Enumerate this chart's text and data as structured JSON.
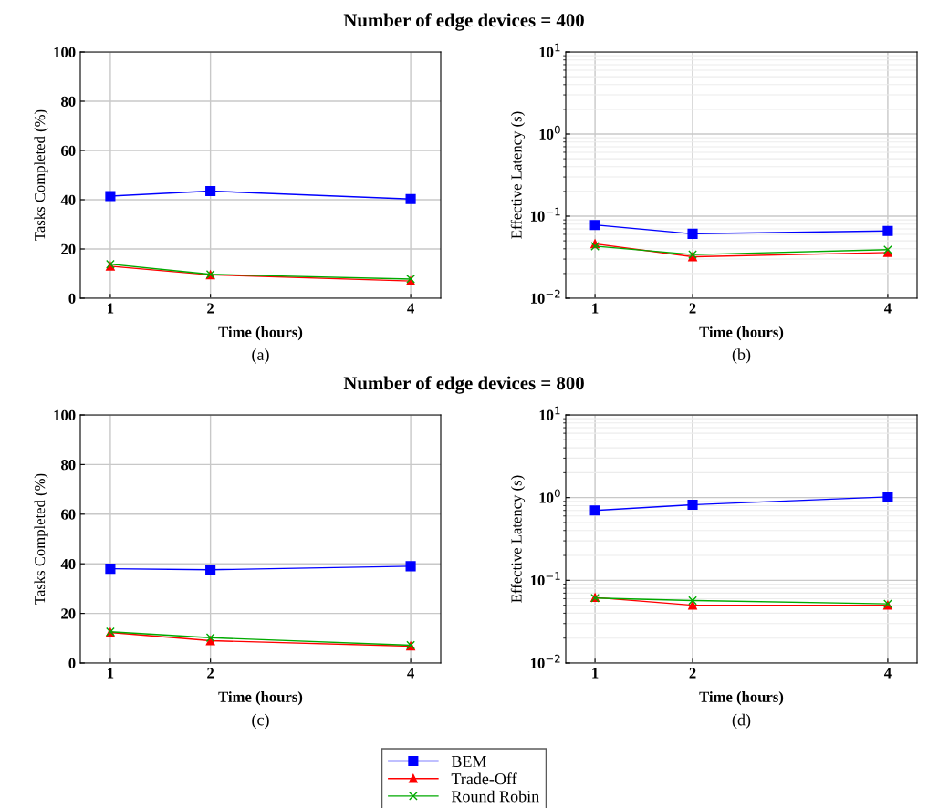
{
  "chart_data": [
    {
      "type": "line",
      "title": "Number of edge devices = 400",
      "xlabel": "Time (hours)",
      "ylabel": "Tasks Completed (%)",
      "annotations": [
        "(a)"
      ],
      "x": [
        1,
        2,
        4
      ],
      "xlim": [
        0.7,
        4.3
      ],
      "xticks": [
        1,
        2,
        4
      ],
      "ylim": [
        0,
        100
      ],
      "yticks": [
        0,
        20,
        40,
        60,
        80,
        100
      ],
      "grid": true,
      "legend": false,
      "series": [
        {
          "color": "#0000ff",
          "marker": "square",
          "values": [
            41.5,
            43.5,
            40.3
          ]
        },
        {
          "color": "#ff0000",
          "marker": "triangle",
          "values": [
            13,
            9.5,
            7
          ]
        },
        {
          "color": "#00aa00",
          "marker": "cross",
          "values": [
            13.8,
            9.7,
            7.8
          ]
        }
      ]
    },
    {
      "type": "line",
      "xlabel": "Time (hours)",
      "ylabel": "Effective Latency (s)",
      "annotations": [
        "(b)"
      ],
      "x": [
        1,
        2,
        4
      ],
      "xlim": [
        0.7,
        4.3
      ],
      "xticks": [
        1,
        2,
        4
      ],
      "log": "y",
      "ylim": [
        0.01,
        10
      ],
      "yticks": [
        {
          "value": 0.01,
          "label": "10$^{−2}$"
        },
        {
          "value": 0.1,
          "label": "10$^{−1}$"
        },
        {
          "value": 1,
          "label": "10$^{0}$"
        },
        {
          "value": 10,
          "label": "10$^{1}$"
        }
      ],
      "grid": true,
      "legend": false,
      "series": [
        {
          "color": "#0000ff",
          "marker": "square",
          "values": [
            0.078,
            0.061,
            0.066
          ]
        },
        {
          "color": "#ff0000",
          "marker": "triangle",
          "values": [
            0.046,
            0.032,
            0.036
          ]
        },
        {
          "color": "#00aa00",
          "marker": "cross",
          "values": [
            0.043,
            0.034,
            0.039
          ]
        }
      ]
    },
    {
      "type": "line",
      "title": "Number of edge devices = 800",
      "xlabel": "Time (hours)",
      "ylabel": "Tasks Completed (%)",
      "annotations": [
        "(c)"
      ],
      "x": [
        1,
        2,
        4
      ],
      "xlim": [
        0.7,
        4.3
      ],
      "xticks": [
        1,
        2,
        4
      ],
      "ylim": [
        0,
        100
      ],
      "yticks": [
        0,
        20,
        40,
        60,
        80,
        100
      ],
      "grid": true,
      "legend": false,
      "series": [
        {
          "color": "#0000ff",
          "marker": "square",
          "values": [
            38,
            37.6,
            39
          ]
        },
        {
          "color": "#ff0000",
          "marker": "triangle",
          "values": [
            12.3,
            9,
            6.8
          ]
        },
        {
          "color": "#00aa00",
          "marker": "cross",
          "values": [
            12.6,
            10.2,
            7.2
          ]
        }
      ]
    },
    {
      "type": "line",
      "xlabel": "Time (hours)",
      "ylabel": "Effective Latency (s)",
      "annotations": [
        "(d)"
      ],
      "x": [
        1,
        2,
        4
      ],
      "xlim": [
        0.7,
        4.3
      ],
      "xticks": [
        1,
        2,
        4
      ],
      "log": "y",
      "ylim": [
        0.01,
        10
      ],
      "yticks": [
        {
          "value": 0.01,
          "label": "10$^{−2}$"
        },
        {
          "value": 0.1,
          "label": "10$^{−1}$"
        },
        {
          "value": 1,
          "label": "10$^{0}$"
        },
        {
          "value": 10,
          "label": "10$^{1}$"
        }
      ],
      "grid": true,
      "legend": "bottom",
      "series": [
        {
          "name": "BEM",
          "color": "#0000ff",
          "marker": "square",
          "values": [
            0.7,
            0.82,
            1.02
          ]
        },
        {
          "name": "Trade-Off",
          "color": "#ff0000",
          "marker": "triangle",
          "values": [
            0.062,
            0.05,
            0.05
          ]
        },
        {
          "name": "Round Robin",
          "color": "#00aa00",
          "marker": "cross",
          "values": [
            0.061,
            0.057,
            0.052
          ]
        }
      ]
    }
  ]
}
